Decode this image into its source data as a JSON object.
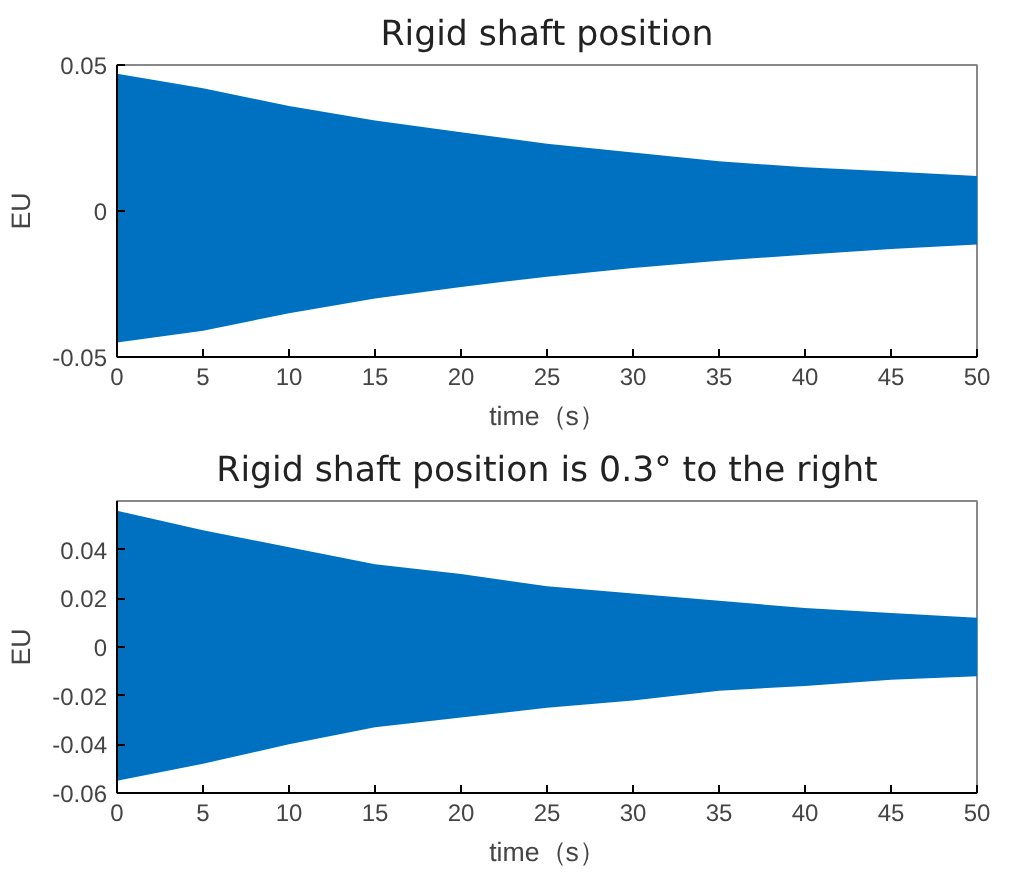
{
  "chart_data": [
    {
      "type": "area",
      "title": "Rigid shaft position",
      "xlabel": "time（s）",
      "ylabel": "EU",
      "x": [
        0,
        5,
        10,
        15,
        20,
        25,
        30,
        35,
        40,
        45,
        50
      ],
      "xlim": [
        0,
        50
      ],
      "xticks": [
        0,
        5,
        10,
        15,
        20,
        25,
        30,
        35,
        40,
        45,
        50
      ],
      "ylim": [
        -0.05,
        0.05
      ],
      "yticks": [
        -0.05,
        0,
        0.05
      ],
      "grid": false,
      "series": [
        {
          "color": "#0070c0",
          "values": [
            0.047,
            0.042,
            0.036,
            0.031,
            0.027,
            0.023,
            0.02,
            0.017,
            0.015,
            0.0135,
            0.012
          ]
        },
        {
          "color": "#0070c0",
          "values": [
            -0.045,
            -0.041,
            -0.035,
            -0.03,
            -0.026,
            -0.0225,
            -0.0195,
            -0.017,
            -0.015,
            -0.013,
            -0.0115
          ]
        }
      ]
    },
    {
      "type": "area",
      "title": "Rigid shaft position is 0.3° to the right",
      "xlabel": "time（s）",
      "ylabel": "EU",
      "x": [
        0,
        5,
        10,
        15,
        20,
        25,
        30,
        35,
        40,
        45,
        50
      ],
      "xlim": [
        0,
        50
      ],
      "xticks": [
        0,
        5,
        10,
        15,
        20,
        25,
        30,
        35,
        40,
        45,
        50
      ],
      "ylim": [
        -0.06,
        0.06
      ],
      "yticks": [
        -0.06,
        -0.04,
        -0.02,
        0,
        0.02,
        0.04
      ],
      "grid": false,
      "series": [
        {
          "color": "#0070c0",
          "values": [
            0.056,
            0.048,
            0.041,
            0.034,
            0.03,
            0.025,
            0.022,
            0.019,
            0.016,
            0.014,
            0.012
          ]
        },
        {
          "color": "#0070c0",
          "values": [
            -0.055,
            -0.048,
            -0.04,
            -0.033,
            -0.029,
            -0.025,
            -0.022,
            -0.018,
            -0.016,
            -0.0135,
            -0.012
          ]
        }
      ]
    }
  ]
}
